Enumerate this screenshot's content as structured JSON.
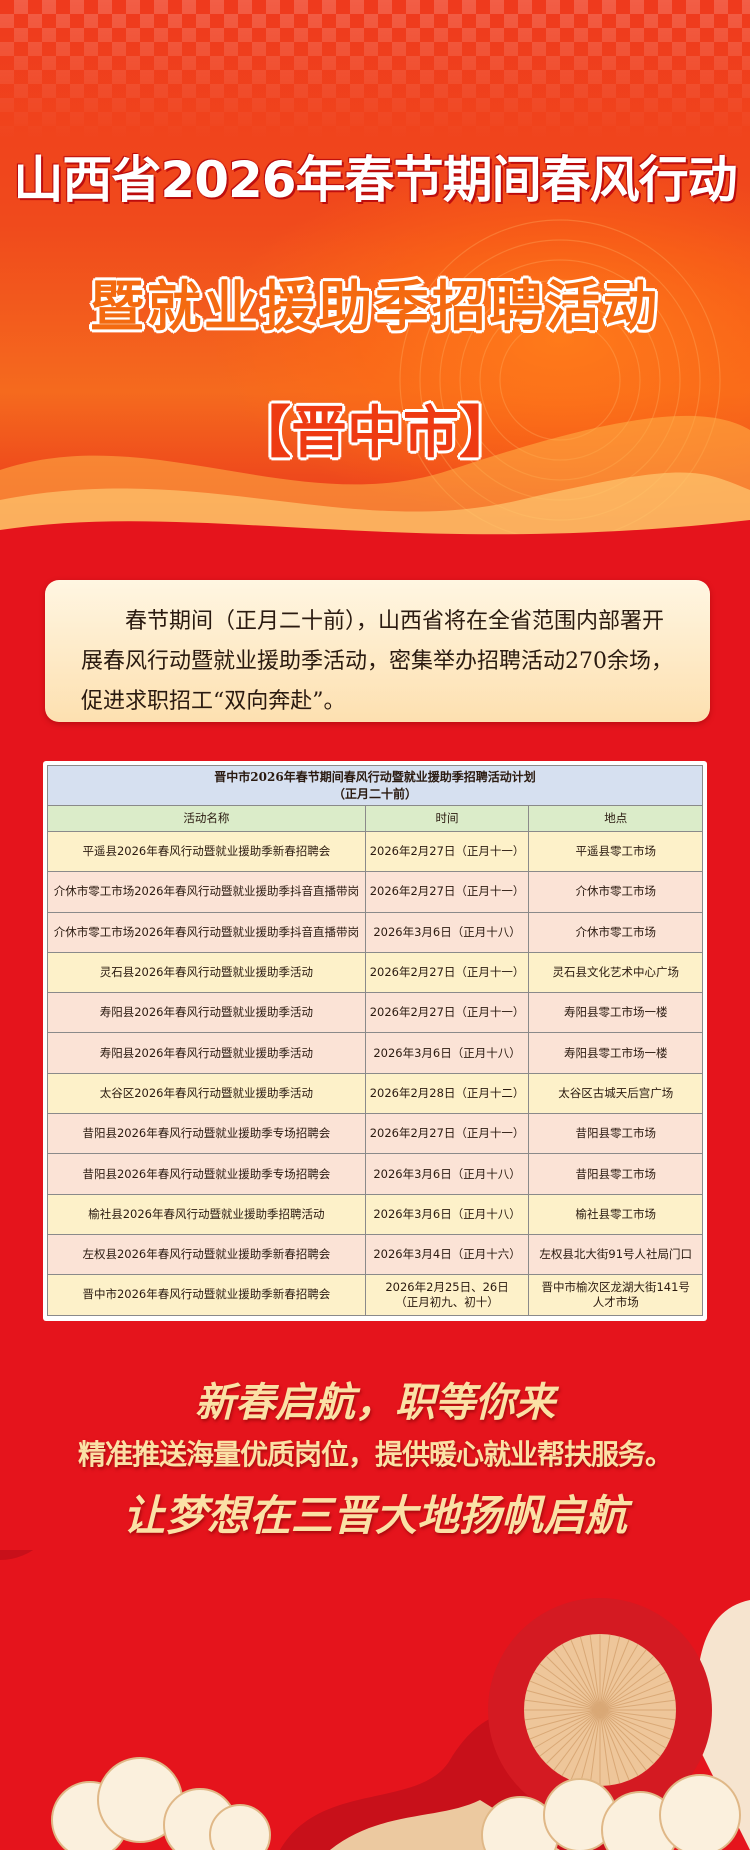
{
  "header": {
    "title_line1": "山西省2026年春节期间春风行动",
    "title_line2": "暨就业援助季招聘活动",
    "title_line3": "【晋中市】"
  },
  "intro": {
    "text": "春节期间（正月二十前），山西省将在全省范围内部署开展春风行动暨就业援助季活动，密集举办招聘活动270余场，促进求职招工“双向奔赴”。"
  },
  "table": {
    "caption_line1": "晋中市2026年春节期间春风行动暨就业援助季招聘活动计划",
    "caption_line2": "（正月二十前）",
    "columns": [
      "活动名称",
      "时间",
      "地点"
    ],
    "rows": [
      {
        "name": "平遥县2026年春风行动暨就业援助季新春招聘会",
        "time": "2026年2月27日（正月十一）",
        "place": "平遥县零工市场"
      },
      {
        "name": "介休市零工市场2026年春风行动暨就业援助季抖音直播带岗",
        "time": "2026年2月27日（正月十一）",
        "place": "介休市零工市场"
      },
      {
        "name": "介休市零工市场2026年春风行动暨就业援助季抖音直播带岗",
        "time": "2026年3月6日（正月十八）",
        "place": "介休市零工市场"
      },
      {
        "name": "灵石县2026年春风行动暨就业援助季活动",
        "time": "2026年2月27日（正月十一）",
        "place": "灵石县文化艺术中心广场"
      },
      {
        "name": "寿阳县2026年春风行动暨就业援助季活动",
        "time": "2026年2月27日（正月十一）",
        "place": "寿阳县零工市场一楼"
      },
      {
        "name": "寿阳县2026年春风行动暨就业援助季活动",
        "time": "2026年3月6日（正月十八）",
        "place": "寿阳县零工市场一楼"
      },
      {
        "name": "太谷区2026年春风行动暨就业援助季活动",
        "time": "2026年2月28日（正月十二）",
        "place": "太谷区古城天后宫广场"
      },
      {
        "name": "昔阳县2026年春风行动暨就业援助季专场招聘会",
        "time": "2026年2月27日（正月十一）",
        "place": "昔阳县零工市场"
      },
      {
        "name": "昔阳县2026年春风行动暨就业援助季专场招聘会",
        "time": "2026年3月6日（正月十八）",
        "place": "昔阳县零工市场"
      },
      {
        "name": "榆社县2026年春风行动暨就业援助季招聘活动",
        "time": "2026年3月6日（正月十八）",
        "place": "榆社县零工市场"
      },
      {
        "name": "左权县2026年春风行动暨就业援助季新春招聘会",
        "time": "2026年3月4日（正月十六）",
        "place": "左权县北大街91号人社局门口"
      },
      {
        "name": "晋中市2026年春风行动暨就业援助季新春招聘会",
        "time_line1": "2026年2月25日、26日",
        "time_line2": "（正月初九、初十）",
        "place_line1": "晋中市榆次区龙湖大街141号",
        "place_line2": "人才市场"
      }
    ]
  },
  "slogans": {
    "line1": "新春启航，职等你来",
    "line2": "精准推送海量优质岗位，提供暖心就业帮扶服务。",
    "line3": "让梦想在三晋大地扬帆启航"
  },
  "colors": {
    "background_red": "#e5141c",
    "hero_orange": "#f56a1e",
    "slogan_gold": "#fbe1a6",
    "table_header_blue": "#d6e0f0",
    "table_colhead_green": "#dbecc9",
    "row_yellow": "#fdf1c9",
    "row_pink": "#fbe3d6"
  }
}
